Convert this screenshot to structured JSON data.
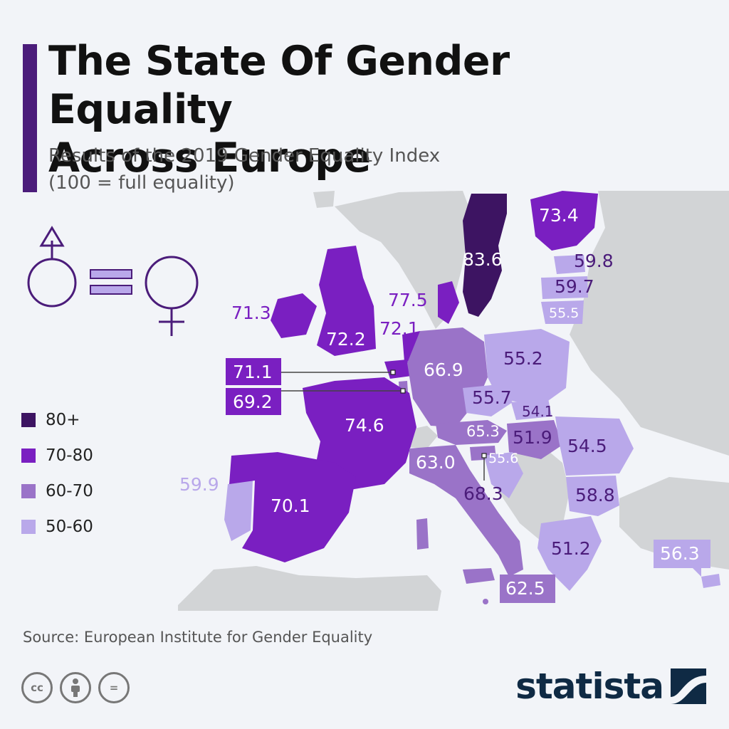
{
  "title_line1": "The State Of Gender Equality",
  "title_line2": "Across Europe",
  "subtitle_line1": "Results of the 2019 Gender Equality Index",
  "subtitle_line2": "(100 = full equality)",
  "legend": [
    {
      "label": "80+",
      "color": "#3d1462"
    },
    {
      "label": "70-80",
      "color": "#7a1fc1"
    },
    {
      "label": "60-70",
      "color": "#9a73c8"
    },
    {
      "label": "50-60",
      "color": "#b9a8ea"
    }
  ],
  "countries": {
    "sweden": "83.6",
    "finland": "73.4",
    "estonia": "59.8",
    "latvia": "59.7",
    "lithuania": "55.5",
    "denmark": "77.5",
    "ireland": "71.3",
    "uk": "72.2",
    "netherlands": "72.1",
    "belgium": "71.1",
    "luxembourg": "69.2",
    "germany": "66.9",
    "poland": "55.2",
    "czechia": "55.7",
    "slovakia": "54.1",
    "france": "74.6",
    "austria": "65.3",
    "hungary": "51.9",
    "romania": "54.5",
    "slovenia": "68.3",
    "croatia": "55.6",
    "italy": "63.0",
    "bulgaria": "58.8",
    "portugal": "59.9",
    "spain": "70.1",
    "greece": "51.2",
    "malta": "62.5",
    "cyprus": "56.3"
  },
  "colors": {
    "band_80_plus": "#3d1462",
    "band_70_80": "#7a1fc1",
    "band_60_70": "#9a73c8",
    "band_50_60": "#b9a8ea",
    "non_member": "#d2d4d6",
    "background": "#f2f4f8",
    "brand": "#0f2a44"
  },
  "icons": [
    "male-symbol-icon",
    "equals-icon",
    "female-symbol-icon",
    "cc-icon",
    "attribution-icon",
    "no-derivatives-icon",
    "statista-logo-icon"
  ],
  "source": "Source: European Institute for Gender Equality",
  "cc_icons": {
    "cc": "cc",
    "nd": "="
  },
  "brand": "statista"
}
